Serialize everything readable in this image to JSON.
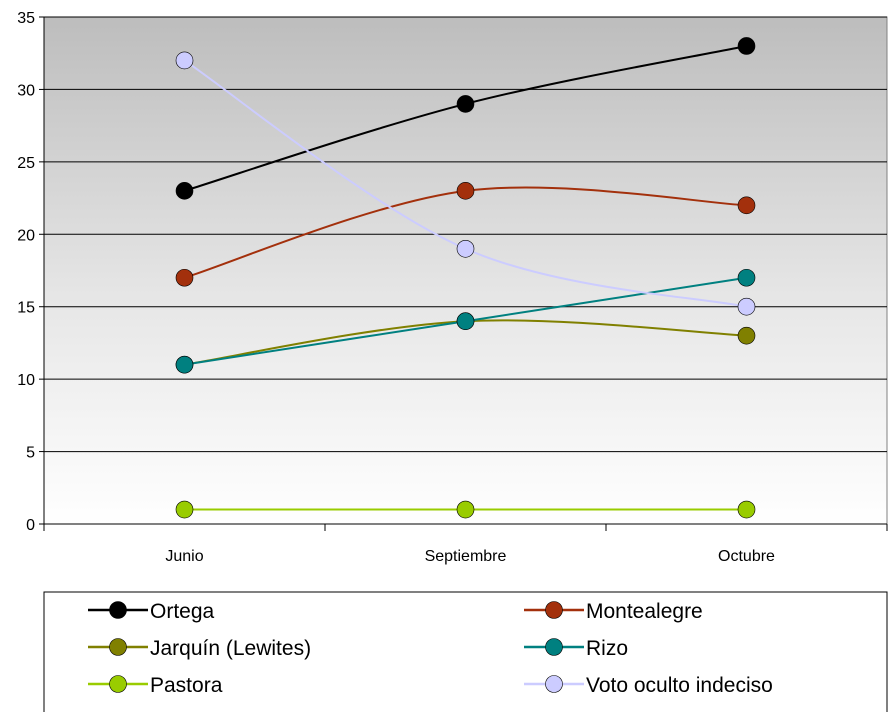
{
  "chart_data": {
    "type": "line",
    "categories": [
      "Junio",
      "Septiembre",
      "Octubre"
    ],
    "ylim": [
      0,
      35
    ],
    "yticks": [
      0,
      5,
      10,
      15,
      20,
      25,
      30,
      35
    ],
    "grid": true,
    "legend_position": "bottom",
    "series": [
      {
        "name": "Ortega",
        "values": [
          23,
          29,
          33
        ],
        "color": "#000000"
      },
      {
        "name": "Montealegre",
        "values": [
          17,
          23,
          22
        ],
        "color": "#a3300c"
      },
      {
        "name": "Jarquín (Lewites)",
        "values": [
          11,
          14,
          13
        ],
        "color": "#808000"
      },
      {
        "name": "Rizo",
        "values": [
          11,
          14,
          17
        ],
        "color": "#008080"
      },
      {
        "name": "Pastora",
        "values": [
          1,
          1,
          1
        ],
        "color": "#99cc00"
      },
      {
        "name": "Voto oculto indeciso",
        "values": [
          32,
          19,
          15
        ],
        "color": "#ccccff"
      }
    ]
  }
}
